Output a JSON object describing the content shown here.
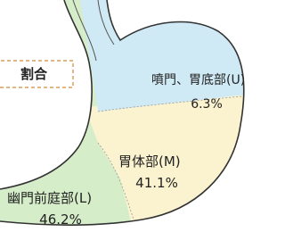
{
  "legend_box": "割合",
  "regions": [
    {
      "name": "噴門、胃底部(U)",
      "value": "6.3%"
    },
    {
      "name": "胃体部(M)",
      "value": "41.1%"
    },
    {
      "name": "幽門前庭部(L)",
      "value": "46.2%"
    }
  ]
}
